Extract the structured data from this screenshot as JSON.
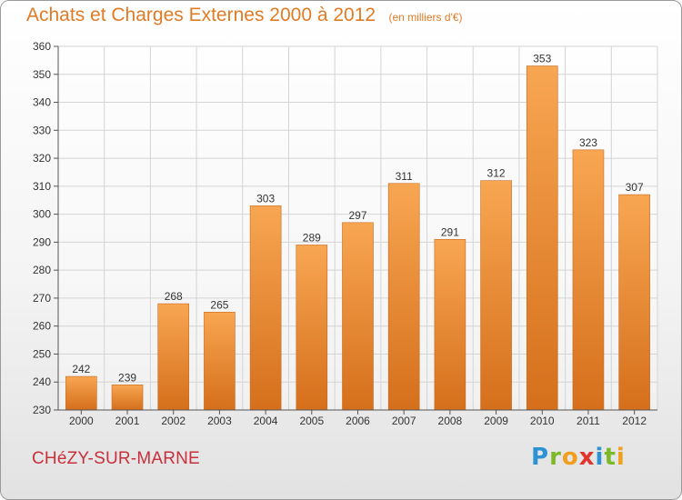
{
  "chart_data": {
    "type": "bar",
    "title": "Achats et Charges Externes 2000 à 2012",
    "subtitle": "(en milliers d'€)",
    "xlabel": "",
    "ylabel": "",
    "categories": [
      "2000",
      "2001",
      "2002",
      "2003",
      "2004",
      "2005",
      "2006",
      "2007",
      "2008",
      "2009",
      "2010",
      "2011",
      "2012"
    ],
    "values": [
      242,
      239,
      268,
      265,
      303,
      289,
      297,
      311,
      291,
      312,
      353,
      323,
      307
    ],
    "ylim": [
      230,
      360
    ],
    "yticks": [
      230,
      240,
      250,
      260,
      270,
      280,
      290,
      300,
      310,
      320,
      330,
      340,
      350,
      360
    ],
    "grid": true,
    "legend": "none",
    "colors": {
      "bar_top": "#f8a652",
      "bar_bottom": "#d56f1c",
      "bar_edge": "#c66a1e",
      "title": "#e07b25",
      "grid": "#d4d4d4"
    }
  },
  "footer": {
    "commune": "CHéZY-SUR-MARNE",
    "logo_letters": [
      {
        "ch": "P",
        "color": "#2b93d3"
      },
      {
        "ch": "r",
        "color": "#7bb928"
      },
      {
        "ch": "o",
        "color": "#f0a01e"
      },
      {
        "ch": "x",
        "color": "#e0352c"
      },
      {
        "ch": "i",
        "color": "#2b93d3"
      },
      {
        "ch": "t",
        "color": "#7bb928"
      },
      {
        "ch": "i",
        "color": "#f0a01e"
      }
    ]
  }
}
